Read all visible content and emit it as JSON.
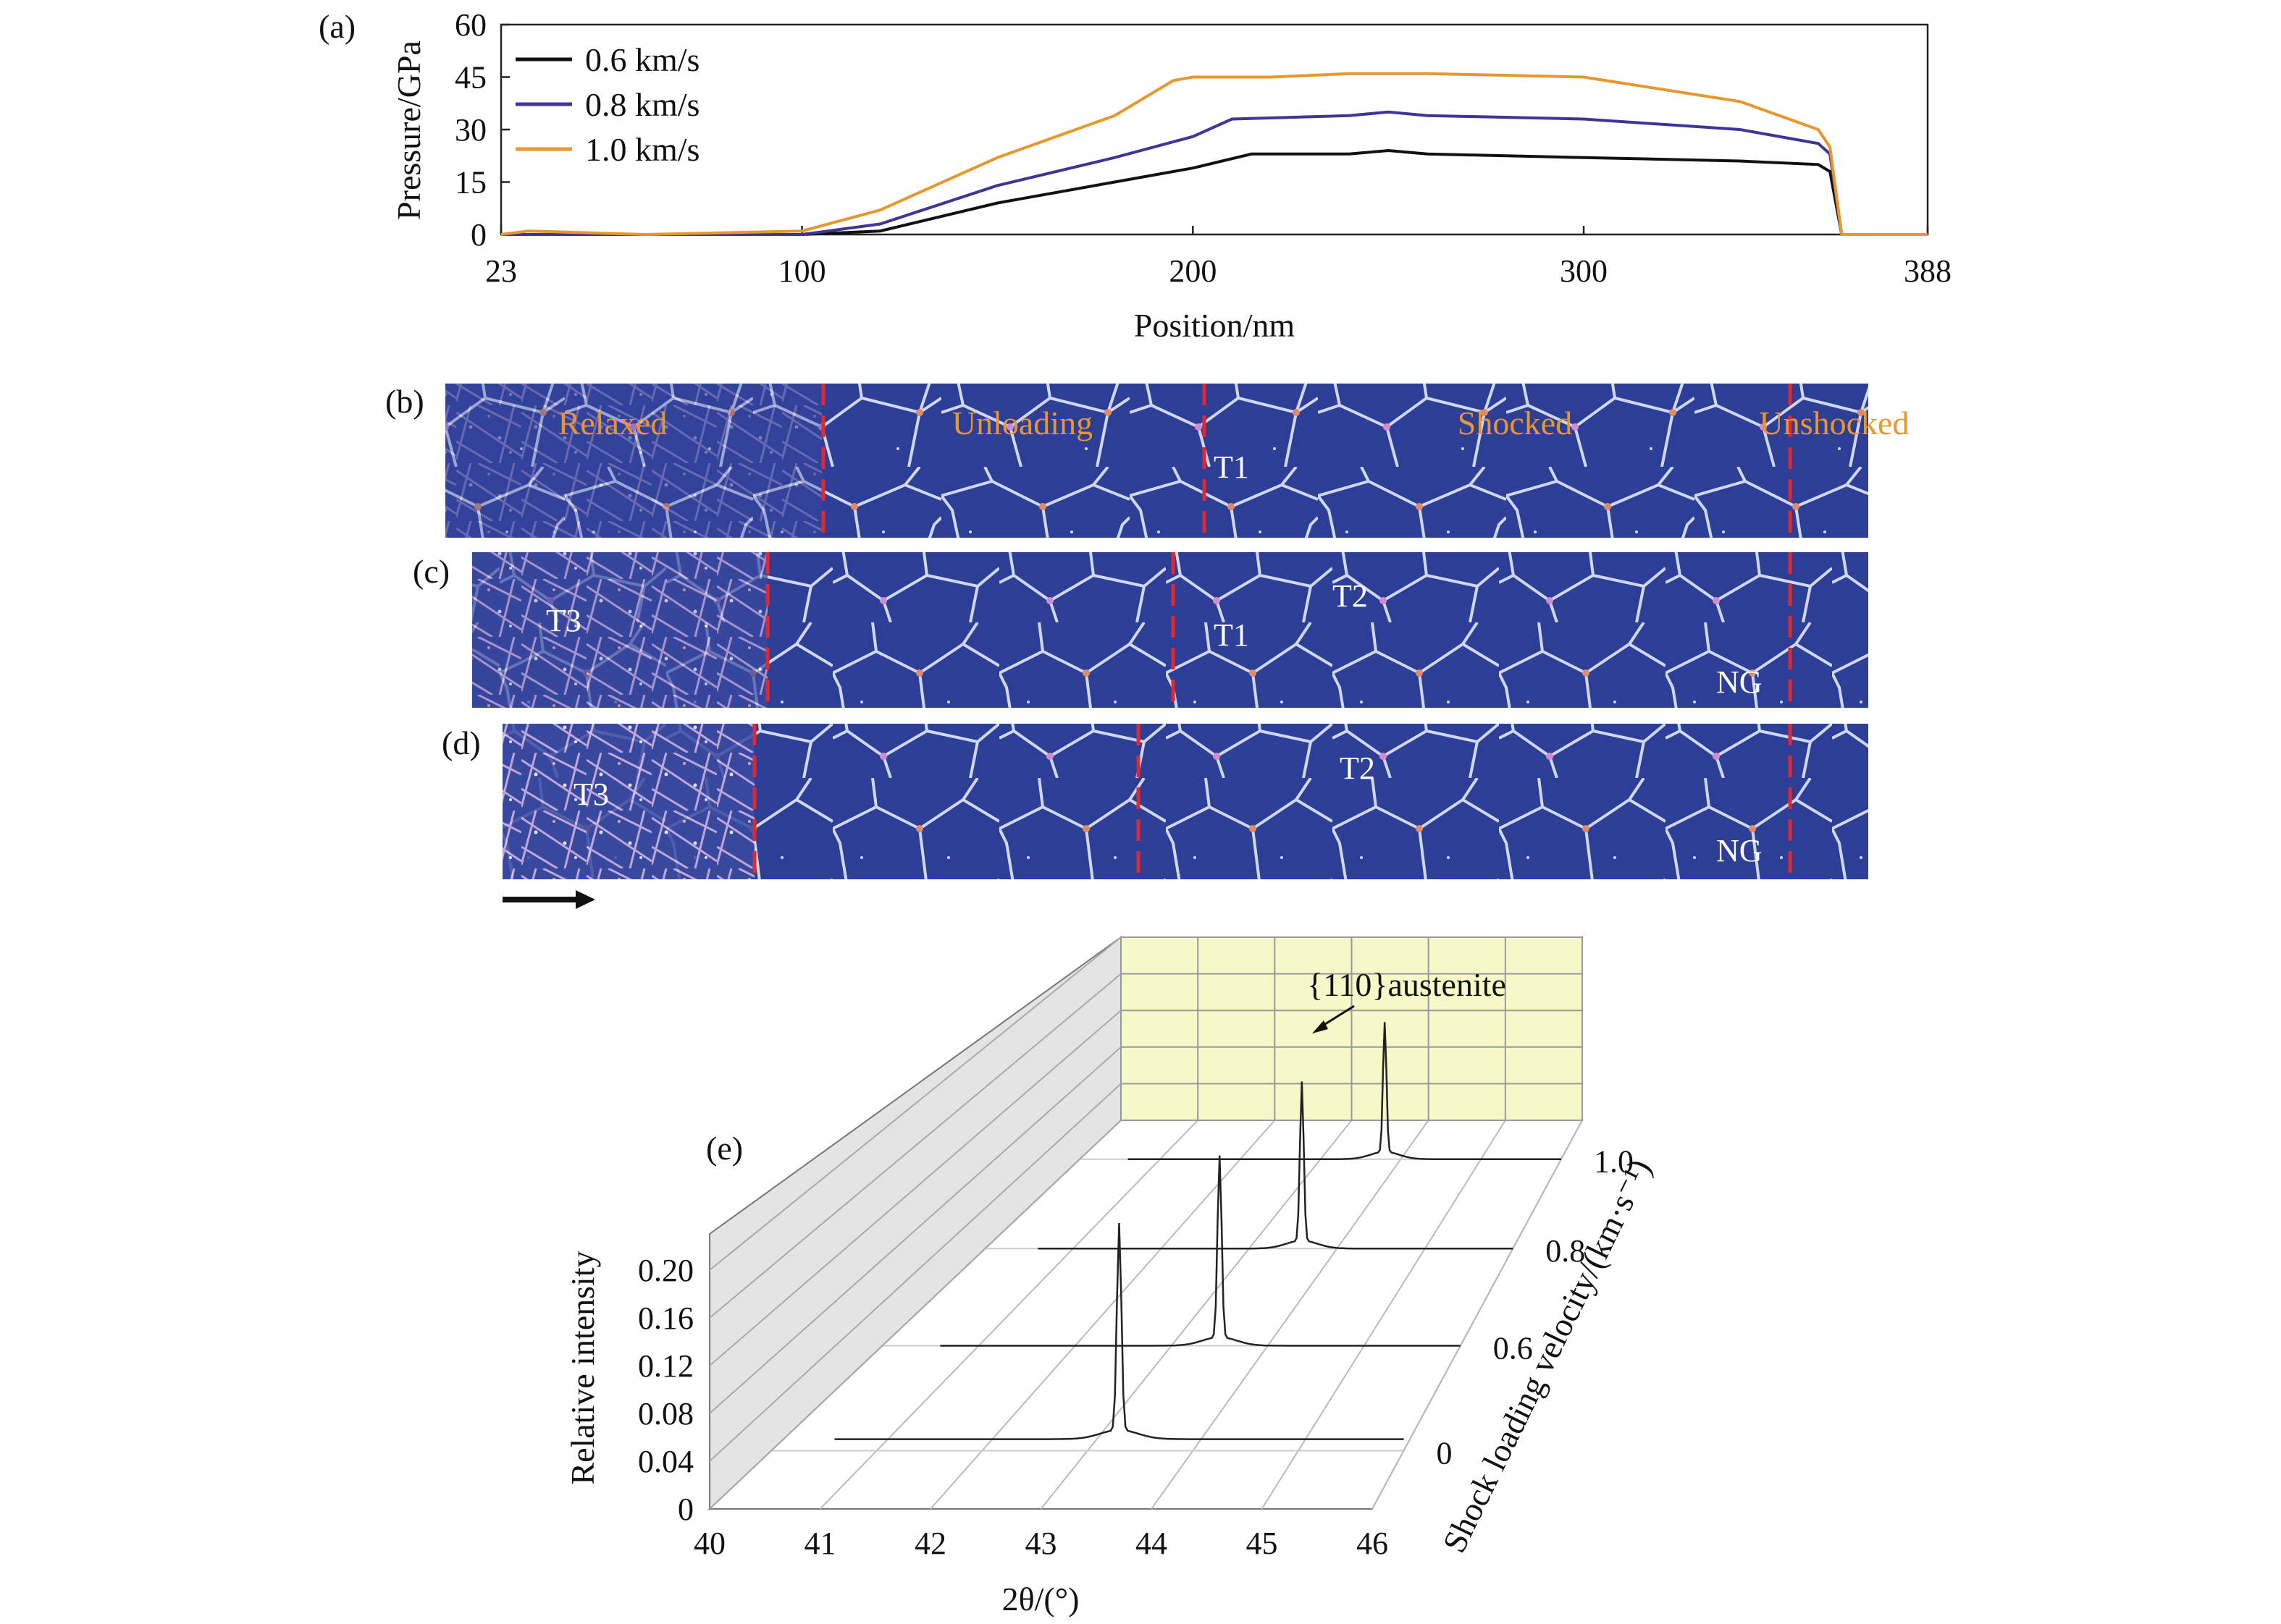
{
  "panel_labels": {
    "a": "(a)",
    "b": "(b)",
    "c": "(c)",
    "d": "(d)",
    "e": "(e)"
  },
  "panel_b_regions": [
    "Relaxed",
    "Unloading",
    "Shocked",
    "Unshocked"
  ],
  "grain_labels": {
    "b": [
      "T1"
    ],
    "c": [
      "T3",
      "T1",
      "T2",
      "NG"
    ],
    "d": [
      "T3",
      "T2",
      "NG"
    ]
  },
  "colors": {
    "line_06": "#111111",
    "line_08": "#3d3597",
    "line_10": "#e8962e",
    "sim_background": "#2d3e96",
    "grain_boundary": "#cfd8f0",
    "front_marker": "#e0282e",
    "region_label": "#e8962e",
    "wall_back": "#f6f8c8",
    "wall_side": "#e4e4e4",
    "trace": "#222222"
  },
  "icons": {
    "arrow": "right-arrow-icon"
  },
  "chart_data": [
    {
      "type": "line",
      "panel": "(a)",
      "xlabel": "Position/nm",
      "ylabel": "Pressure/GPa",
      "xlim": [
        23,
        388
      ],
      "ylim": [
        0,
        60
      ],
      "xticks": [
        23,
        100,
        200,
        300,
        388
      ],
      "yticks": [
        0,
        15,
        30,
        45,
        60
      ],
      "legend_position": "top-left",
      "series": [
        {
          "name": "0.6 km/s",
          "color": "#111111",
          "x": [
            23,
            60,
            100,
            120,
            150,
            180,
            200,
            215,
            240,
            250,
            260,
            300,
            340,
            360,
            363,
            366,
            388
          ],
          "y": [
            0,
            0,
            0,
            1,
            9,
            15,
            19,
            23,
            23,
            24,
            23,
            22,
            21,
            20,
            18,
            0,
            0
          ]
        },
        {
          "name": "0.8 km/s",
          "color": "#3d3597",
          "x": [
            23,
            60,
            100,
            120,
            150,
            180,
            200,
            210,
            240,
            250,
            260,
            300,
            340,
            360,
            363,
            366,
            388
          ],
          "y": [
            0,
            0,
            0,
            3,
            14,
            22,
            28,
            33,
            34,
            35,
            34,
            33,
            30,
            26,
            23,
            0,
            0
          ]
        },
        {
          "name": "1.0 km/s",
          "color": "#e8962e",
          "x": [
            23,
            30,
            60,
            100,
            120,
            150,
            180,
            195,
            200,
            220,
            240,
            260,
            300,
            340,
            360,
            363,
            366,
            388
          ],
          "y": [
            0,
            1,
            0,
            1,
            7,
            22,
            34,
            44,
            45,
            45,
            46,
            46,
            45,
            38,
            30,
            25,
            0,
            0
          ]
        }
      ]
    },
    {
      "type": "line",
      "panel": "(e)",
      "xlabel": "2θ/(°)",
      "ylabel": "Relative intensity",
      "zlabel": "Shock loading velocity/(km·s⁻¹)",
      "annotation": "{110}austenite",
      "xlim": [
        40,
        46
      ],
      "ylim": [
        0,
        0.2
      ],
      "xticks": [
        40,
        41,
        42,
        43,
        44,
        45,
        46
      ],
      "yticks": [
        0,
        0.04,
        0.08,
        0.12,
        0.16,
        0.2
      ],
      "ytick_labels": [
        "0",
        "0.04",
        "0.08",
        "0.12",
        "0.16",
        "0.20"
      ],
      "depth_ticks": [
        "0",
        "0.6",
        "0.8",
        "1.0"
      ],
      "series": [
        {
          "name": "0",
          "peak_position": 43.3,
          "peak_intensity": 0.18,
          "baseline": 0.01
        },
        {
          "name": "0.6",
          "peak_position": 43.5,
          "peak_intensity": 0.17,
          "baseline": 0.0
        },
        {
          "name": "0.8",
          "peak_position": 43.6,
          "peak_intensity": 0.16,
          "baseline": 0.0
        },
        {
          "name": "1.0",
          "peak_position": 43.8,
          "peak_intensity": 0.14,
          "baseline": 0.0
        }
      ]
    }
  ]
}
